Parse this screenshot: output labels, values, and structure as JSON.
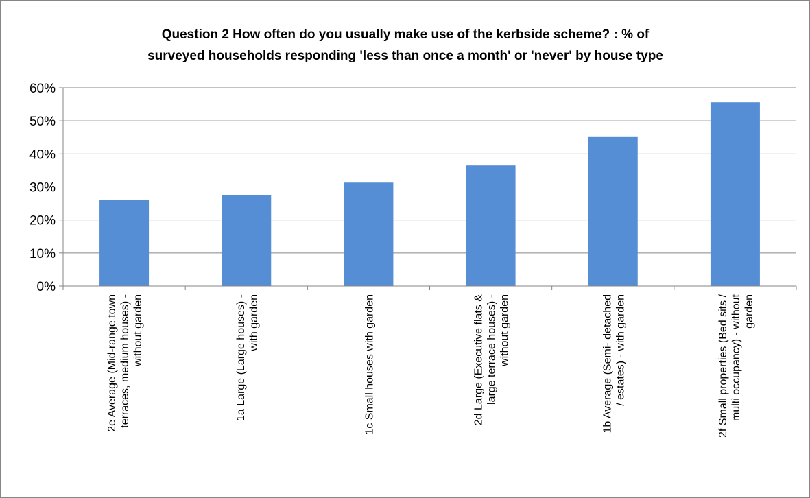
{
  "chart_data": {
    "type": "bar",
    "title": [
      "Question 2  How often do you usually make use of the kerbside scheme? :  % of",
      "surveyed households responding 'less than once a month' or 'never' by house type"
    ],
    "categories": [
      [
        "2e  Average (Mid-range town",
        "terraces, medium houses) -",
        "without garden"
      ],
      [
        "1a  Large (Large houses) -",
        "with garden"
      ],
      [
        "1c  Small houses with garden"
      ],
      [
        "2d Large  (Executive flats &",
        "large terrace houses) -",
        "without garden"
      ],
      [
        "1b  Average  (Semi- detached",
        "/ estates) - with garden"
      ],
      [
        "2f Small properties (Bed sits /",
        "multi occupancy) - without",
        "garden"
      ]
    ],
    "values": [
      26,
      27.5,
      31.3,
      36.5,
      45.3,
      55.6
    ],
    "y_ticks": [
      "0%",
      "10%",
      "20%",
      "30%",
      "40%",
      "50%",
      "60%"
    ],
    "ylim": [
      0,
      60
    ],
    "xlabel": "",
    "ylabel": "",
    "grid": true,
    "legend": "none",
    "bar_color": "#558ED5",
    "grid_color": "#868686"
  }
}
